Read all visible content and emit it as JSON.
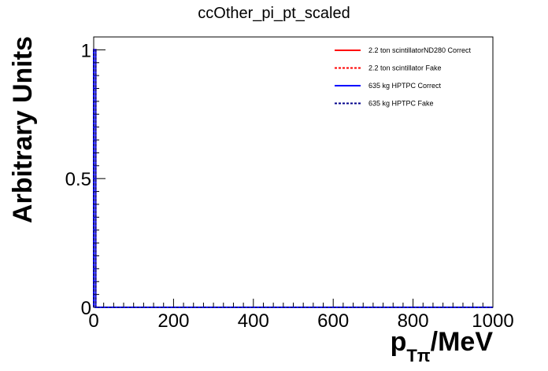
{
  "chart_data": {
    "type": "line",
    "title": "ccOther_pi_pt_scaled",
    "ylabel": "Arbitrary Units",
    "xlabel": {
      "main": "p",
      "sub": "Tπ",
      "unit": "/MeV"
    },
    "xlim": [
      0,
      1000
    ],
    "ylim": [
      0,
      1.05
    ],
    "x_ticks": [
      0,
      200,
      400,
      600,
      800,
      1000
    ],
    "x_tick_labels": [
      "0",
      "200",
      "400",
      "600",
      "800",
      "1000"
    ],
    "y_ticks": [
      0,
      0.5,
      1
    ],
    "y_tick_labels": [
      "0",
      "0.5",
      "1"
    ],
    "grid": false,
    "legend_position": "top-right",
    "series": [
      {
        "name": "2.2 ton scintillatorND280 Correct",
        "color": "#ff0000",
        "style": "solid",
        "x": [
          0,
          0,
          5,
          5,
          10,
          10,
          1000
        ],
        "y": [
          0,
          1,
          1,
          0,
          0,
          0,
          0
        ]
      },
      {
        "name": "2.2 ton scintillator Fake",
        "color": "#ff0000",
        "style": "dashed",
        "x": [
          0,
          0,
          5,
          5,
          10,
          10,
          1000
        ],
        "y": [
          0,
          1,
          1,
          0,
          0,
          0,
          0
        ]
      },
      {
        "name": "635 kg HPTPC Correct",
        "color": "#0000ff",
        "style": "solid",
        "x": [
          0,
          0,
          5,
          5,
          10,
          10,
          1000
        ],
        "y": [
          0,
          1,
          1,
          0,
          0,
          0,
          0
        ]
      },
      {
        "name": "635 kg HPTPC Fake",
        "color": "#00008b",
        "style": "dashed",
        "x": [
          0,
          0,
          5,
          5,
          10,
          10,
          1000
        ],
        "y": [
          0,
          1,
          1,
          0,
          0,
          0,
          0
        ]
      }
    ]
  }
}
